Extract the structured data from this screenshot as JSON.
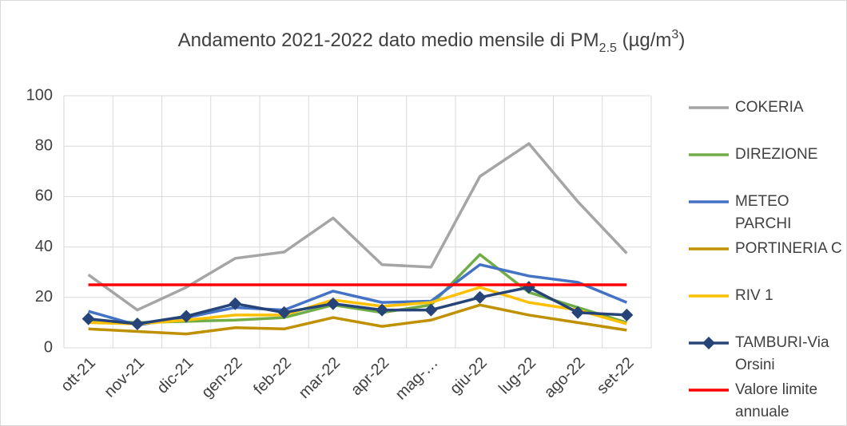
{
  "chart_data": {
    "type": "line",
    "title": [
      "Andamento 2021-2022 dato medio mensile di PM",
      "2.5",
      " (µg/m",
      "3",
      ")"
    ],
    "categories": [
      "ott-21",
      "nov-21",
      "dic-21",
      "gen-22",
      "feb-22",
      "mar-22",
      "apr-22",
      "mag-…",
      "giu-22",
      "lug-22",
      "ago-22",
      "set-22"
    ],
    "series": [
      {
        "name": "COKERIA",
        "color": "#a5a5a5",
        "values": [
          29,
          15,
          24,
          35.5,
          38,
          51.5,
          33,
          32,
          68,
          81,
          58,
          37.5
        ]
      },
      {
        "name": "DIREZIONE",
        "color": "#70ad47",
        "values": [
          11,
          10,
          10.5,
          11,
          12,
          17,
          14,
          17,
          37,
          22,
          16,
          10
        ]
      },
      {
        "name": "METEO PARCHI",
        "color": "#4472c4",
        "values": [
          14.5,
          9,
          12,
          16,
          15,
          22.5,
          18,
          18.5,
          33,
          28.5,
          26,
          18
        ]
      },
      {
        "name": "PORTINERIA C",
        "color": "#bf9000",
        "values": [
          7.5,
          6.5,
          5.5,
          8,
          7.5,
          12,
          8.5,
          11,
          17,
          13,
          10,
          7
        ]
      },
      {
        "name": "RIV 1",
        "color": "#ffc000",
        "values": [
          10,
          9.5,
          11,
          13,
          13,
          19,
          16.5,
          18,
          24,
          18,
          15,
          9.5
        ]
      },
      {
        "name": "TAMBURI-Via Orsini",
        "color": "#264478",
        "marker": "diamond",
        "values": [
          11.5,
          9.5,
          12.5,
          17.5,
          14,
          17.5,
          15,
          15,
          20,
          24,
          14,
          13
        ]
      },
      {
        "name": "Valore limite annuale",
        "color": "#ff0000",
        "values": [
          25,
          25,
          25,
          25,
          25,
          25,
          25,
          25,
          25,
          25,
          25,
          25
        ]
      }
    ],
    "ylim": [
      0,
      100
    ],
    "yticks": [
      0,
      20,
      40,
      60,
      80,
      100
    ],
    "grid": true,
    "legend": "right"
  }
}
